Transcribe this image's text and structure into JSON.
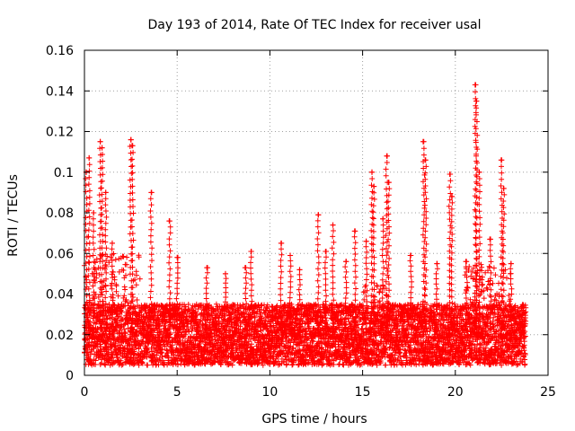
{
  "chart_data": {
    "type": "scatter",
    "title": "Day 193 of 2014, Rate Of TEC Index for receiver usal",
    "xlabel": "GPS time / hours",
    "ylabel": "ROTI / TECUs",
    "xlim": [
      0,
      25
    ],
    "ylim": [
      0,
      0.16
    ],
    "x_ticks": [
      0,
      5,
      10,
      15,
      20,
      25
    ],
    "x_tick_labels": [
      "0",
      "5",
      "10",
      "15",
      "20",
      "25"
    ],
    "y_ticks": [
      0,
      0.02,
      0.04,
      0.06,
      0.08,
      0.1,
      0.12,
      0.14,
      0.16
    ],
    "y_tick_labels": [
      "0",
      "0.02",
      "0.04",
      "0.06",
      "0.08",
      "0.1",
      "0.12",
      "0.14",
      "0.16"
    ],
    "grid": true,
    "marker": "+",
    "marker_color": "#ff0000",
    "series": [
      {
        "name": "ROTI",
        "x_range": [
          0,
          23.8
        ],
        "baseline_range": [
          0.005,
          0.035
        ],
        "peaks": [
          {
            "x": 0.1,
            "y": 0.1
          },
          {
            "x": 0.25,
            "y": 0.107
          },
          {
            "x": 0.5,
            "y": 0.08
          },
          {
            "x": 0.85,
            "y": 0.115
          },
          {
            "x": 0.95,
            "y": 0.112
          },
          {
            "x": 1.15,
            "y": 0.09
          },
          {
            "x": 1.5,
            "y": 0.065
          },
          {
            "x": 2.5,
            "y": 0.116
          },
          {
            "x": 2.6,
            "y": 0.113
          },
          {
            "x": 3.6,
            "y": 0.09
          },
          {
            "x": 4.6,
            "y": 0.076
          },
          {
            "x": 5.0,
            "y": 0.058
          },
          {
            "x": 6.6,
            "y": 0.053
          },
          {
            "x": 7.6,
            "y": 0.05
          },
          {
            "x": 8.7,
            "y": 0.053
          },
          {
            "x": 9.0,
            "y": 0.061
          },
          {
            "x": 10.6,
            "y": 0.065
          },
          {
            "x": 11.1,
            "y": 0.059
          },
          {
            "x": 11.6,
            "y": 0.052
          },
          {
            "x": 12.6,
            "y": 0.079
          },
          {
            "x": 13.0,
            "y": 0.061
          },
          {
            "x": 13.4,
            "y": 0.074
          },
          {
            "x": 14.1,
            "y": 0.056
          },
          {
            "x": 14.6,
            "y": 0.071
          },
          {
            "x": 15.2,
            "y": 0.066
          },
          {
            "x": 15.5,
            "y": 0.1
          },
          {
            "x": 15.6,
            "y": 0.093
          },
          {
            "x": 16.1,
            "y": 0.077
          },
          {
            "x": 16.3,
            "y": 0.108
          },
          {
            "x": 16.4,
            "y": 0.095
          },
          {
            "x": 17.6,
            "y": 0.059
          },
          {
            "x": 18.3,
            "y": 0.115
          },
          {
            "x": 18.4,
            "y": 0.106
          },
          {
            "x": 19.0,
            "y": 0.055
          },
          {
            "x": 19.7,
            "y": 0.099
          },
          {
            "x": 19.8,
            "y": 0.088
          },
          {
            "x": 20.6,
            "y": 0.056
          },
          {
            "x": 21.1,
            "y": 0.143
          },
          {
            "x": 21.15,
            "y": 0.135
          },
          {
            "x": 21.3,
            "y": 0.1
          },
          {
            "x": 21.9,
            "y": 0.067
          },
          {
            "x": 22.5,
            "y": 0.106
          },
          {
            "x": 22.6,
            "y": 0.092
          },
          {
            "x": 23.0,
            "y": 0.055
          },
          {
            "x": 23.6,
            "y": 0.03
          }
        ]
      }
    ]
  }
}
